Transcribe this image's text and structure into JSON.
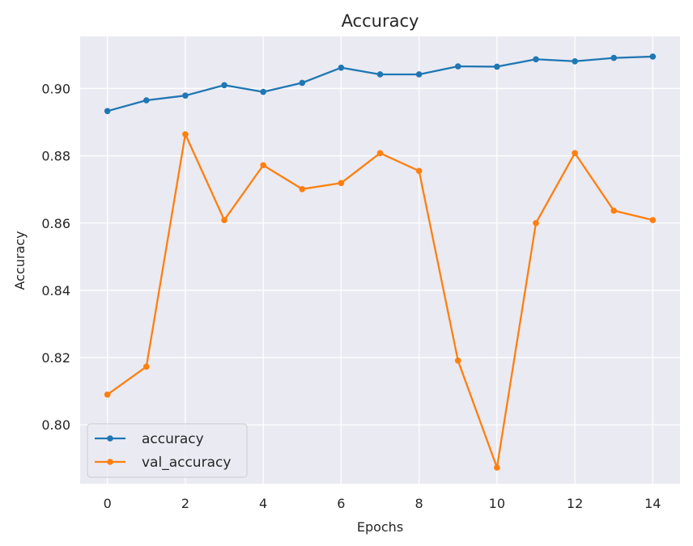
{
  "chart_data": {
    "type": "line",
    "title": "Accuracy",
    "xlabel": "Epochs",
    "ylabel": "Accuracy",
    "x": [
      0,
      1,
      2,
      3,
      4,
      5,
      6,
      7,
      8,
      9,
      10,
      11,
      12,
      13,
      14
    ],
    "xticks": [
      0,
      2,
      4,
      6,
      8,
      10,
      12,
      14
    ],
    "yticks": [
      0.8,
      0.82,
      0.84,
      0.86,
      0.88,
      0.9
    ],
    "ytick_labels": [
      "0.80",
      "0.82",
      "0.84",
      "0.86",
      "0.88",
      "0.90"
    ],
    "xlim": [
      -0.7,
      14.7
    ],
    "ylim": [
      0.7825,
      0.9155
    ],
    "grid": true,
    "legend_position": "lower-left",
    "background_color": "#eaeaf2",
    "grid_color": "#ffffff",
    "series": [
      {
        "name": "accuracy",
        "color": "#1f77b4",
        "values": [
          0.8933,
          0.8965,
          0.8979,
          0.901,
          0.899,
          0.9017,
          0.9062,
          0.9042,
          0.9042,
          0.9066,
          0.9065,
          0.9087,
          0.9081,
          0.9091,
          0.9095
        ]
      },
      {
        "name": "val_accuracy",
        "color": "#ff7f0e",
        "values": [
          0.809,
          0.8173,
          0.8864,
          0.8609,
          0.8772,
          0.8701,
          0.8719,
          0.8808,
          0.8755,
          0.8191,
          0.7873,
          0.86,
          0.8808,
          0.8637,
          0.8609
        ]
      }
    ]
  }
}
